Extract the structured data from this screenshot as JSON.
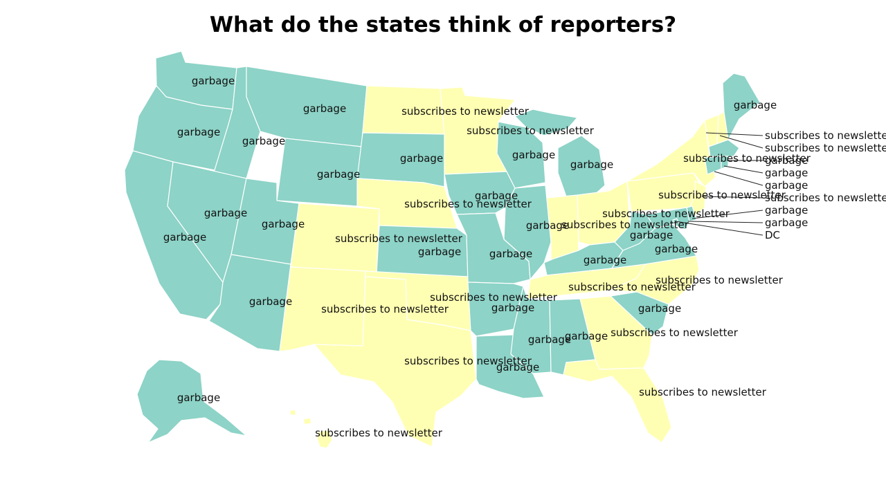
{
  "title": "What do the states think of reporters?",
  "colors": {
    "garbage": "#8dd3c7",
    "subscribes": "#ffffb3",
    "border": "#ffffff"
  },
  "legend_values": {
    "garbage": "garbage",
    "subscribes": "subscribes to newsletter"
  },
  "states": [
    {
      "id": "WA",
      "value": "garbage"
    },
    {
      "id": "OR",
      "value": "garbage"
    },
    {
      "id": "CA",
      "value": "garbage"
    },
    {
      "id": "ID",
      "value": "garbage"
    },
    {
      "id": "NV",
      "value": "garbage"
    },
    {
      "id": "MT",
      "value": "garbage"
    },
    {
      "id": "WY",
      "value": "garbage"
    },
    {
      "id": "UT",
      "value": "garbage"
    },
    {
      "id": "AZ",
      "value": "garbage"
    },
    {
      "id": "CO",
      "value": "subscribes to newsletter"
    },
    {
      "id": "NM",
      "value": "subscribes to newsletter"
    },
    {
      "id": "ND",
      "value": "subscribes to newsletter"
    },
    {
      "id": "SD",
      "value": "garbage"
    },
    {
      "id": "NE",
      "value": "subscribes to newsletter"
    },
    {
      "id": "KS",
      "value": "garbage"
    },
    {
      "id": "OK",
      "value": "subscribes to newsletter"
    },
    {
      "id": "TX",
      "value": "subscribes to newsletter"
    },
    {
      "id": "MN",
      "value": "subscribes to newsletter"
    },
    {
      "id": "IA",
      "value": "garbage"
    },
    {
      "id": "MO",
      "value": "garbage"
    },
    {
      "id": "AR",
      "value": "garbage"
    },
    {
      "id": "LA",
      "value": "garbage"
    },
    {
      "id": "WI",
      "value": "garbage"
    },
    {
      "id": "IL",
      "value": "garbage"
    },
    {
      "id": "MI",
      "value": "garbage"
    },
    {
      "id": "IN",
      "value": "subscribes to newsletter"
    },
    {
      "id": "OH",
      "value": "subscribes to newsletter"
    },
    {
      "id": "KY",
      "value": "garbage"
    },
    {
      "id": "TN",
      "value": "subscribes to newsletter"
    },
    {
      "id": "MS",
      "value": "garbage"
    },
    {
      "id": "AL",
      "value": "garbage"
    },
    {
      "id": "GA",
      "value": "subscribes to newsletter"
    },
    {
      "id": "FL",
      "value": "subscribes to newsletter"
    },
    {
      "id": "SC",
      "value": "garbage"
    },
    {
      "id": "NC",
      "value": "subscribes to newsletter"
    },
    {
      "id": "VA",
      "value": "garbage"
    },
    {
      "id": "WV",
      "value": "garbage"
    },
    {
      "id": "PA",
      "value": "subscribes to newsletter"
    },
    {
      "id": "NY",
      "value": "subscribes to newsletter"
    },
    {
      "id": "VT",
      "value": "subscribes to newsletter"
    },
    {
      "id": "NH",
      "value": "subscribes to newsletter"
    },
    {
      "id": "ME",
      "value": "garbage"
    },
    {
      "id": "MA",
      "value": "garbage"
    },
    {
      "id": "RI",
      "value": "garbage"
    },
    {
      "id": "CT",
      "value": "garbage"
    },
    {
      "id": "NJ",
      "value": "subscribes to newsletter"
    },
    {
      "id": "DE",
      "value": "garbage"
    },
    {
      "id": "MD",
      "value": "garbage"
    },
    {
      "id": "DC",
      "value": "DC"
    },
    {
      "id": "AK",
      "value": "garbage"
    },
    {
      "id": "HI",
      "value": "subscribes to newsletter"
    }
  ]
}
